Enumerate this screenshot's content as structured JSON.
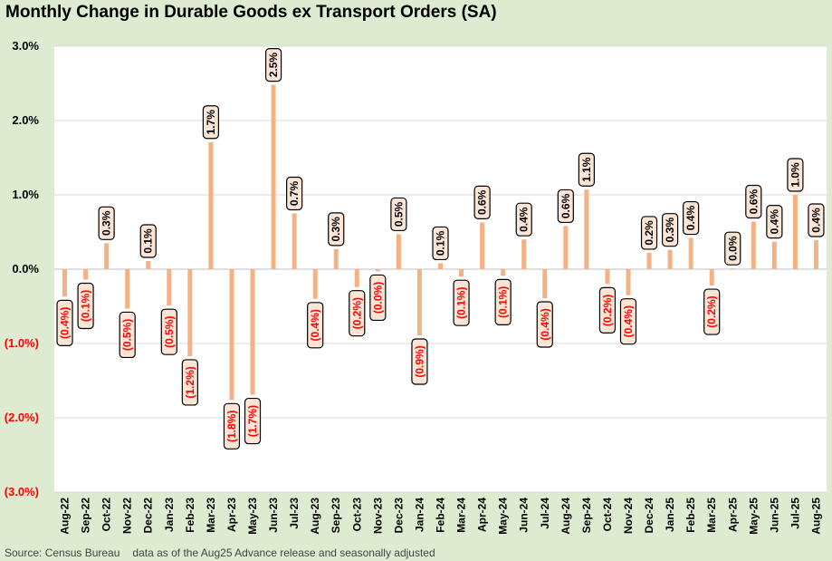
{
  "title": "Monthly Change in Durable Goods ex Transport Orders (SA)",
  "footer": {
    "source": "Source: Census Bureau",
    "note": "data as of the Aug25 Advance release and seasonally adjusted"
  },
  "colors": {
    "bar": "#f4b183",
    "label_bg": "#fbe5d6",
    "negative_text": "#ff0000",
    "positive_text": "#000000",
    "background": "#ddebd0",
    "plot_bg": "#ffffff",
    "grid": "#d9d9d9"
  },
  "chart_data": {
    "type": "bar",
    "title": "Monthly Change in Durable Goods ex Transport Orders (SA)",
    "xlabel": "",
    "ylabel": "",
    "ylim": [
      -3.0,
      3.0
    ],
    "yticks": [
      3.0,
      2.0,
      1.0,
      0.0,
      -1.0,
      -2.0,
      -3.0
    ],
    "ytick_labels": [
      "3.0%",
      "2.0%",
      "1.0%",
      "0.0%",
      "(1.0%)",
      "(2.0%)",
      "(3.0%)"
    ],
    "grid": true,
    "categories": [
      "Aug-22",
      "Sep-22",
      "Oct-22",
      "Nov-22",
      "Dec-22",
      "Jan-23",
      "Feb-23",
      "Mar-23",
      "Apr-23",
      "May-23",
      "Jun-23",
      "Jul-23",
      "Aug-23",
      "Sep-23",
      "Oct-23",
      "Nov-23",
      "Dec-23",
      "Jan-24",
      "Feb-24",
      "Mar-24",
      "Apr-24",
      "May-24",
      "Jun-24",
      "Jul-24",
      "Aug-24",
      "Sep-24",
      "Oct-24",
      "Nov-24",
      "Dec-24",
      "Jan-25",
      "Feb-25",
      "Mar-25",
      "Apr-25",
      "May-25",
      "Jun-25",
      "Jul-25",
      "Aug-25"
    ],
    "values": [
      -0.37,
      -0.14,
      0.35,
      -0.53,
      0.11,
      -0.49,
      -1.17,
      1.71,
      -1.76,
      -1.69,
      2.48,
      0.75,
      -0.4,
      0.27,
      -0.24,
      -0.03,
      0.47,
      -0.89,
      0.08,
      -0.1,
      0.63,
      -0.09,
      0.4,
      -0.39,
      0.58,
      1.07,
      -0.2,
      -0.35,
      0.22,
      0.26,
      0.42,
      -0.22,
      0.01,
      0.64,
      0.37,
      1.0,
      0.39
    ],
    "data_labels": [
      "(0.4%)",
      "(0.1%)",
      "0.3%",
      "(0.5%)",
      "0.1%",
      "(0.5%)",
      "(1.2%)",
      "1.7%",
      "(1.8%)",
      "(1.7%)",
      "2.5%",
      "0.7%",
      "(0.4%)",
      "0.3%",
      "(0.2%)",
      "(0.0%)",
      "0.5%",
      "(0.9%)",
      "0.1%",
      "(0.1%)",
      "0.6%",
      "(0.1%)",
      "0.4%",
      "(0.4%)",
      "0.6%",
      "1.1%",
      "(0.2%)",
      "(0.4%)",
      "0.2%",
      "0.3%",
      "0.4%",
      "(0.2%)",
      "0.0%",
      "0.6%",
      "0.4%",
      "1.0%",
      "0.4%"
    ]
  }
}
